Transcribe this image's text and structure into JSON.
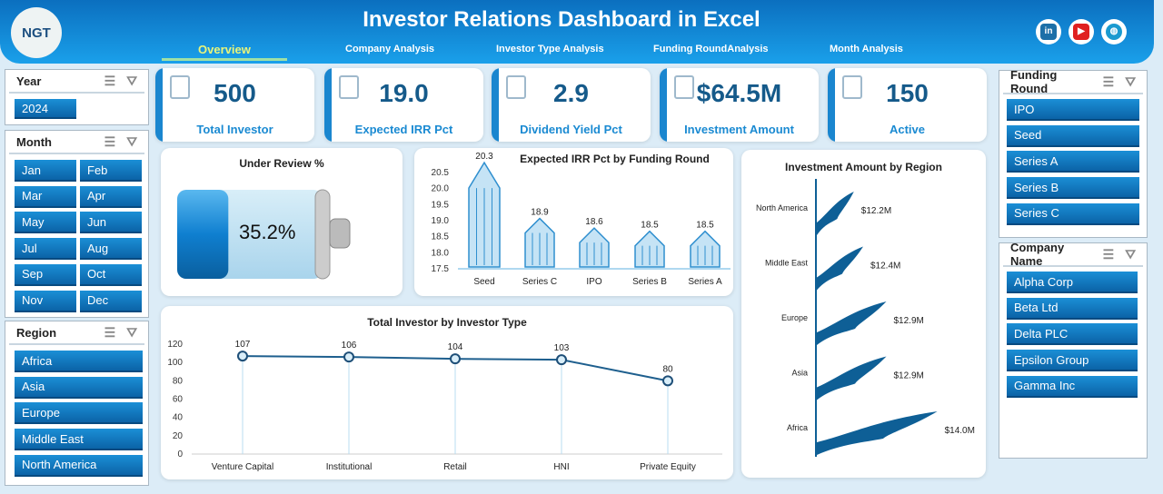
{
  "header": {
    "title": "Investor Relations Dashboard in Excel",
    "logo_text": "NGT",
    "tabs": [
      "Overview",
      "Company Analysis",
      "Investor Type Analysis",
      "Funding RoundAnalysis",
      "Month Analysis"
    ],
    "active_tab": "Overview",
    "social": [
      "linkedin-icon",
      "youtube-icon",
      "globe-icon"
    ]
  },
  "slicers": {
    "year": {
      "title": "Year",
      "items": [
        "2024"
      ]
    },
    "month": {
      "title": "Month",
      "items": [
        "Jan",
        "Feb",
        "Mar",
        "Apr",
        "May",
        "Jun",
        "Jul",
        "Aug",
        "Sep",
        "Oct",
        "Nov",
        "Dec"
      ]
    },
    "region": {
      "title": "Region",
      "items": [
        "Africa",
        "Asia",
        "Europe",
        "Middle East",
        "North America"
      ]
    },
    "funding_round": {
      "title": "Funding Round",
      "items": [
        "IPO",
        "Seed",
        "Series A",
        "Series B",
        "Series C"
      ]
    },
    "company": {
      "title": "Company Name",
      "items": [
        "Alpha Corp",
        "Beta Ltd",
        "Delta PLC",
        "Epsilon Group",
        "Gamma Inc"
      ]
    }
  },
  "kpis": [
    {
      "value": "500",
      "label": "Total Investor"
    },
    {
      "value": "19.0",
      "label": "Expected IRR Pct"
    },
    {
      "value": "2.9",
      "label": "Dividend Yield Pct"
    },
    {
      "value": "$64.5M",
      "label": "Investment Amount"
    },
    {
      "value": "150",
      "label": "Active"
    }
  ],
  "under_review": {
    "title": "Under Review %",
    "value": "35.2%",
    "fraction": 0.352
  },
  "chart_data": [
    {
      "type": "bar",
      "title": "Expected IRR Pct by Funding Round",
      "categories": [
        "Seed",
        "Series C",
        "IPO",
        "Series B",
        "Series A"
      ],
      "values": [
        20.3,
        18.9,
        18.6,
        18.5,
        18.5
      ],
      "labels": [
        "20.3",
        "18.9",
        "18.6",
        "18.5",
        "18.5"
      ],
      "ylim": [
        17.5,
        20.5
      ],
      "yticks": [
        "17.5",
        "18.0",
        "18.5",
        "19.0",
        "19.5",
        "20.0",
        "20.5"
      ]
    },
    {
      "type": "bar",
      "orientation": "horizontal",
      "title": "Investment Amount by Region",
      "categories": [
        "North America",
        "Middle East",
        "Europe",
        "Asia",
        "Africa"
      ],
      "values": [
        12.2,
        12.4,
        12.9,
        12.9,
        14.0
      ],
      "labels": [
        "$12.2M",
        "$12.4M",
        "$12.9M",
        "$12.9M",
        "$14.0M"
      ]
    },
    {
      "type": "line",
      "title": "Total Investor by Investor Type",
      "categories": [
        "Venture Capital",
        "Institutional",
        "Retail",
        "HNI",
        "Private Equity"
      ],
      "values": [
        107,
        106,
        104,
        103,
        80
      ],
      "labels": [
        "107",
        "106",
        "104",
        "103",
        "80"
      ],
      "ylim": [
        0,
        120
      ],
      "yticks": [
        "0",
        "20",
        "40",
        "60",
        "80",
        "100",
        "120"
      ]
    }
  ],
  "colors": {
    "accent": "#1a86cf",
    "header": "#0b6fbf",
    "bar": "#c5e3f5",
    "flag": "#0e5f96"
  }
}
